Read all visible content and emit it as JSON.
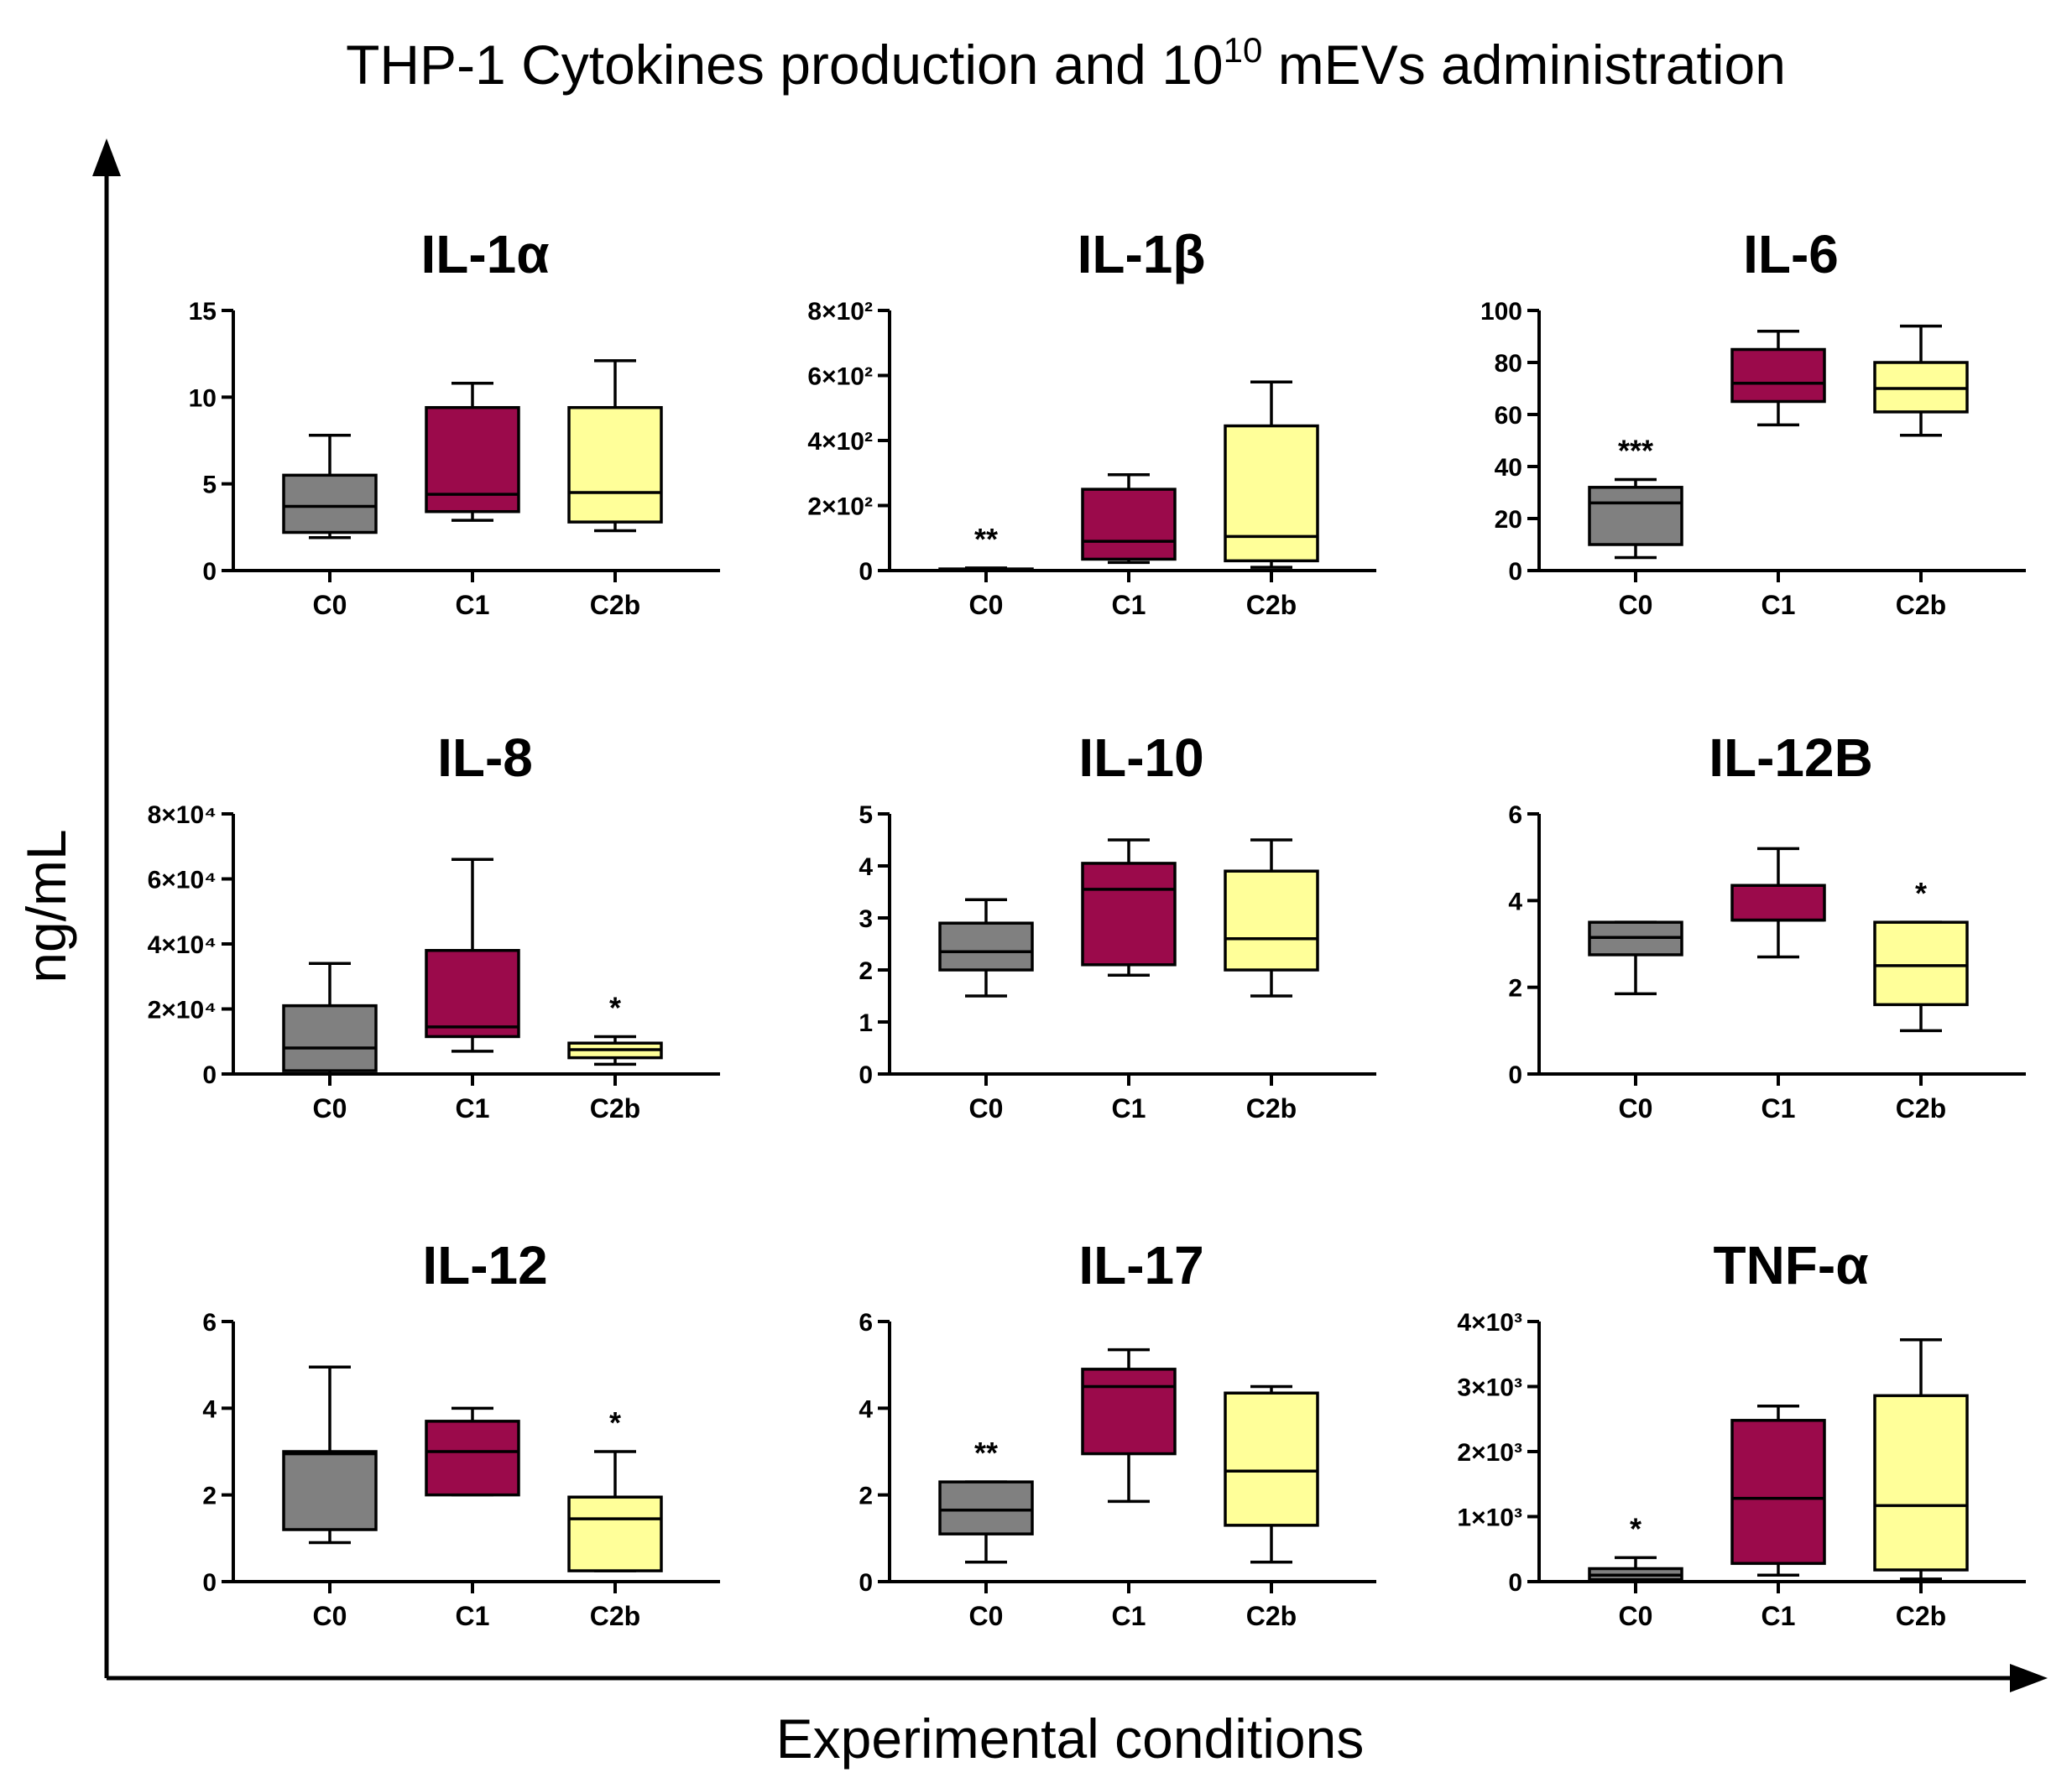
{
  "figure": {
    "title_main": "THP-1 Cytokines production and 10",
    "title_sup": "10",
    "title_tail": " mEVs administration",
    "ylabel": "ng/mL",
    "xlabel": "Experimental conditions"
  },
  "colors": {
    "C0": "#808080",
    "C1": "#9b0a4b",
    "C2b": "#ffff99",
    "stroke": "#000000"
  },
  "chart_data": [
    {
      "type": "box",
      "title": "IL-1α",
      "categories": [
        "C0",
        "C1",
        "C2b"
      ],
      "ylim": [
        0,
        15
      ],
      "ticks": [
        0,
        5,
        10,
        15
      ],
      "tick_labels": [
        "0",
        "5",
        "10",
        "15"
      ],
      "boxes": [
        {
          "min": 1.9,
          "q1": 2.2,
          "median": 3.7,
          "q3": 5.5,
          "max": 7.8
        },
        {
          "min": 2.9,
          "q1": 3.4,
          "median": 4.4,
          "q3": 9.4,
          "max": 10.8
        },
        {
          "min": 2.3,
          "q1": 2.8,
          "median": 4.5,
          "q3": 9.4,
          "max": 12.1
        }
      ],
      "significance": [
        "",
        "",
        ""
      ]
    },
    {
      "type": "box",
      "title": "IL-1β",
      "categories": [
        "C0",
        "C1",
        "C2b"
      ],
      "ylim": [
        0,
        800
      ],
      "ticks": [
        0,
        200,
        400,
        600,
        800
      ],
      "tick_labels": [
        "0",
        "2×10²",
        "4×10²",
        "6×10²",
        "8×10²"
      ],
      "boxes": [
        {
          "min": 0,
          "q1": 0,
          "median": 2,
          "q3": 5,
          "max": 8
        },
        {
          "min": 25,
          "q1": 35,
          "median": 90,
          "q3": 250,
          "max": 295
        },
        {
          "min": 10,
          "q1": 30,
          "median": 105,
          "q3": 445,
          "max": 580
        }
      ],
      "significance": [
        "**",
        "",
        ""
      ]
    },
    {
      "type": "box",
      "title": "IL-6",
      "categories": [
        "C0",
        "C1",
        "C2b"
      ],
      "ylim": [
        0,
        100
      ],
      "ticks": [
        0,
        20,
        40,
        60,
        80,
        100
      ],
      "tick_labels": [
        "0",
        "20",
        "40",
        "60",
        "80",
        "100"
      ],
      "boxes": [
        {
          "min": 5,
          "q1": 10,
          "median": 26,
          "q3": 32,
          "max": 35
        },
        {
          "min": 56,
          "q1": 65,
          "median": 72,
          "q3": 85,
          "max": 92
        },
        {
          "min": 52,
          "q1": 61,
          "median": 70,
          "q3": 80,
          "max": 94
        }
      ],
      "significance": [
        "***",
        "",
        ""
      ]
    },
    {
      "type": "box",
      "title": "IL-8",
      "categories": [
        "C0",
        "C1",
        "C2b"
      ],
      "ylim": [
        0,
        80000
      ],
      "ticks": [
        0,
        20000,
        40000,
        60000,
        80000
      ],
      "tick_labels": [
        "0",
        "2×10⁴",
        "4×10⁴",
        "6×10⁴",
        "8×10⁴"
      ],
      "boxes": [
        {
          "min": 0,
          "q1": 1000,
          "median": 8000,
          "q3": 21000,
          "max": 34000
        },
        {
          "min": 7000,
          "q1": 11500,
          "median": 14500,
          "q3": 38000,
          "max": 66000
        },
        {
          "min": 3000,
          "q1": 5000,
          "median": 7500,
          "q3": 9500,
          "max": 11500
        }
      ],
      "significance": [
        "",
        "",
        "*"
      ]
    },
    {
      "type": "box",
      "title": "IL-10",
      "categories": [
        "C0",
        "C1",
        "C2b"
      ],
      "ylim": [
        0,
        5
      ],
      "ticks": [
        0,
        1,
        2,
        3,
        4,
        5
      ],
      "tick_labels": [
        "0",
        "1",
        "2",
        "3",
        "4",
        "5"
      ],
      "boxes": [
        {
          "min": 1.5,
          "q1": 2.0,
          "median": 2.35,
          "q3": 2.9,
          "max": 3.35
        },
        {
          "min": 1.9,
          "q1": 2.1,
          "median": 3.55,
          "q3": 4.05,
          "max": 4.5
        },
        {
          "min": 1.5,
          "q1": 2.0,
          "median": 2.6,
          "q3": 3.9,
          "max": 4.5
        }
      ],
      "significance": [
        "",
        "",
        ""
      ]
    },
    {
      "type": "box",
      "title": "IL-12B",
      "categories": [
        "C0",
        "C1",
        "C2b"
      ],
      "ylim": [
        0,
        6
      ],
      "ticks": [
        0,
        2,
        4,
        6
      ],
      "tick_labels": [
        "0",
        "2",
        "4",
        "6"
      ],
      "boxes": [
        {
          "min": 1.85,
          "q1": 2.75,
          "median": 3.15,
          "q3": 3.5,
          "max": 3.5
        },
        {
          "min": 2.7,
          "q1": 3.55,
          "median": 3.55,
          "q3": 4.35,
          "max": 5.2
        },
        {
          "min": 1.0,
          "q1": 1.6,
          "median": 2.5,
          "q3": 3.5,
          "max": 3.5
        }
      ],
      "significance": [
        "",
        "",
        "*"
      ]
    },
    {
      "type": "box",
      "title": "IL-12",
      "categories": [
        "C0",
        "C1",
        "C2b"
      ],
      "ylim": [
        0,
        6
      ],
      "ticks": [
        0,
        2,
        4,
        6
      ],
      "tick_labels": [
        "0",
        "2",
        "4",
        "6"
      ],
      "boxes": [
        {
          "min": 0.9,
          "q1": 1.2,
          "median": 2.95,
          "q3": 3.0,
          "max": 4.95
        },
        {
          "min": 2.0,
          "q1": 2.0,
          "median": 3.0,
          "q3": 3.7,
          "max": 4.0
        },
        {
          "min": 0.25,
          "q1": 0.25,
          "median": 1.45,
          "q3": 1.95,
          "max": 3.0
        }
      ],
      "significance": [
        "",
        "",
        "*"
      ]
    },
    {
      "type": "box",
      "title": "IL-17",
      "categories": [
        "C0",
        "C1",
        "C2b"
      ],
      "ylim": [
        0,
        6
      ],
      "ticks": [
        0,
        2,
        4,
        6
      ],
      "tick_labels": [
        "0",
        "2",
        "4",
        "6"
      ],
      "boxes": [
        {
          "min": 0.45,
          "q1": 1.1,
          "median": 1.65,
          "q3": 2.3,
          "max": 2.3
        },
        {
          "min": 1.85,
          "q1": 2.95,
          "median": 4.5,
          "q3": 4.9,
          "max": 5.35
        },
        {
          "min": 0.45,
          "q1": 1.3,
          "median": 2.55,
          "q3": 4.35,
          "max": 4.5
        }
      ],
      "significance": [
        "**",
        "",
        ""
      ]
    },
    {
      "type": "box",
      "title": "TNF-α",
      "categories": [
        "C0",
        "C1",
        "C2b"
      ],
      "ylim": [
        0,
        4000
      ],
      "ticks": [
        0,
        1000,
        2000,
        3000,
        4000
      ],
      "tick_labels": [
        "0",
        "1×10³",
        "2×10³",
        "3×10³",
        "4×10³"
      ],
      "boxes": [
        {
          "min": 0,
          "q1": 30,
          "median": 100,
          "q3": 200,
          "max": 370
        },
        {
          "min": 100,
          "q1": 280,
          "median": 1280,
          "q3": 2480,
          "max": 2700
        },
        {
          "min": 40,
          "q1": 180,
          "median": 1170,
          "q3": 2860,
          "max": 3720
        }
      ],
      "significance": [
        "*",
        "",
        ""
      ]
    }
  ]
}
